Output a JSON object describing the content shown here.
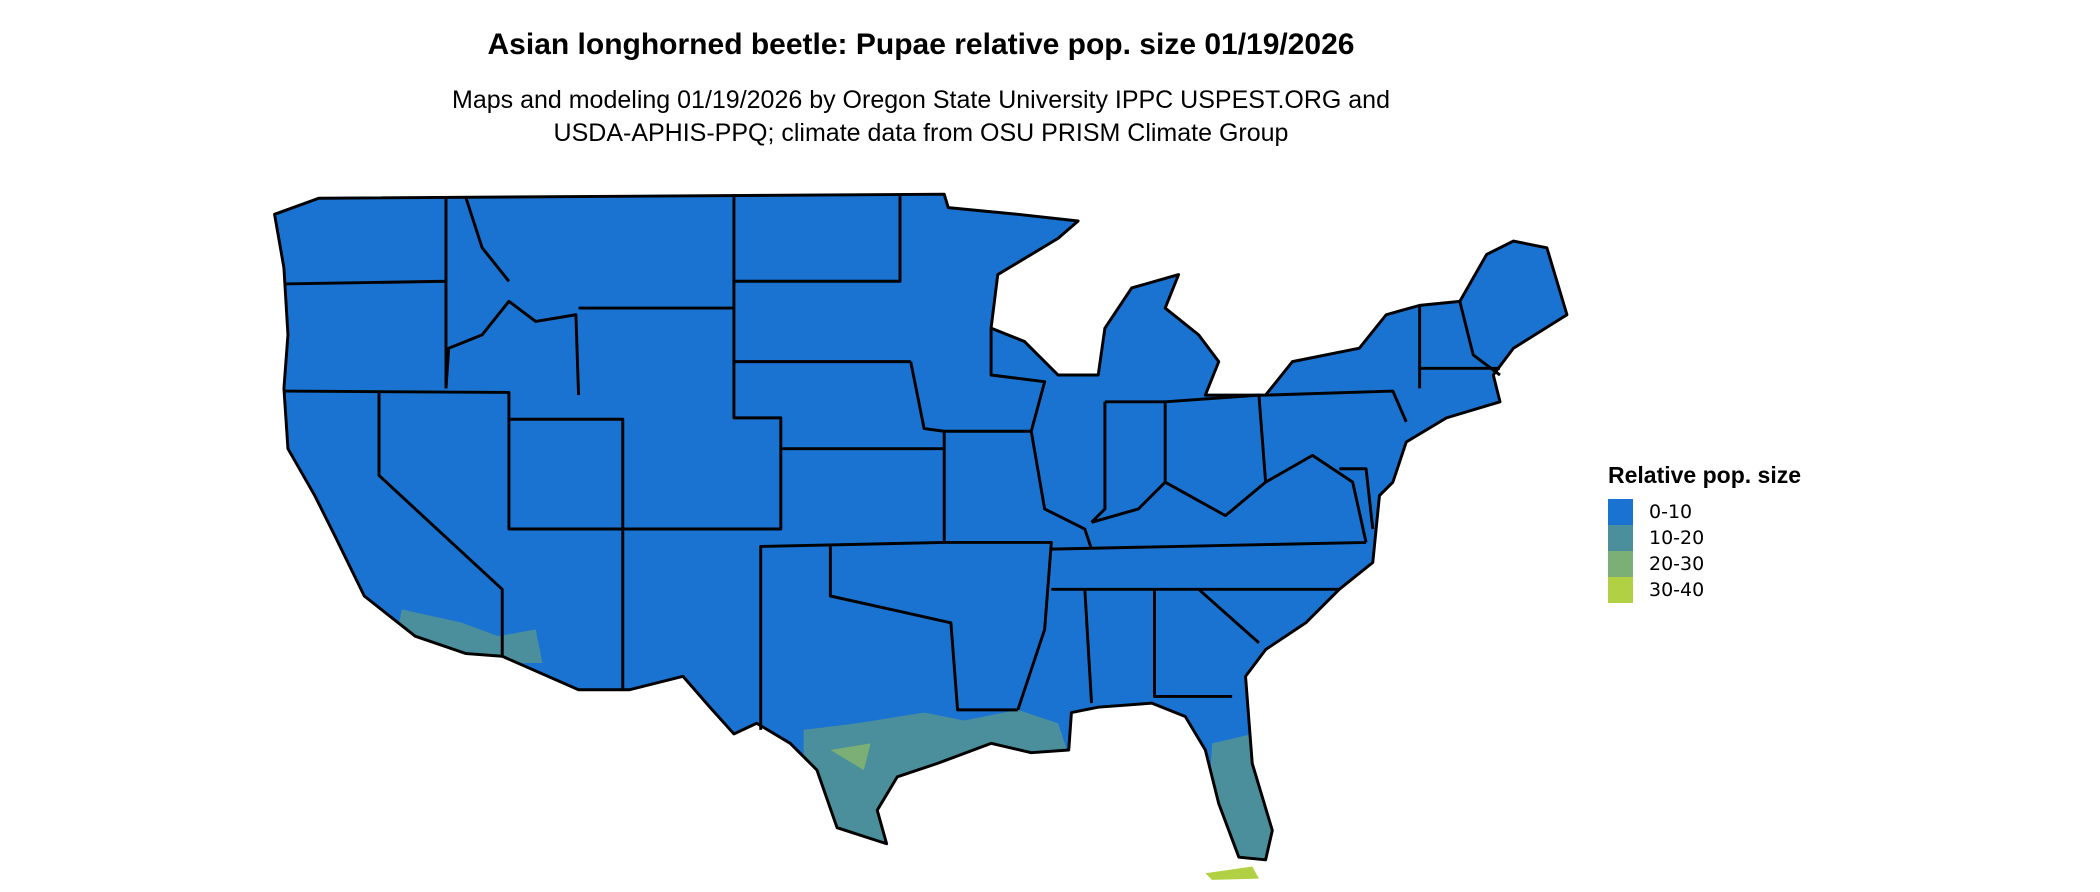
{
  "title": "Asian longhorned beetle: Pupae relative pop. size 01/19/2026",
  "subtitle_line1": "Maps and modeling 01/19/2026 by Oregon State University IPPC USPEST.ORG and",
  "subtitle_line2": "USDA-APHIS-PPQ; climate data from OSU PRISM Climate Group",
  "map": {
    "region": "Contiguous United States",
    "boundaries": "state borders",
    "dominant_class": "0-10",
    "regions_10_20": [
      "Gulf Coast of Texas",
      "southern Louisiana",
      "Florida peninsula",
      "southern California and Arizona"
    ],
    "regions_30_40": [
      "southern tip of Florida"
    ]
  },
  "legend": {
    "title": "Relative pop. size",
    "items": [
      {
        "label": "0-10",
        "color": "#1a73d0"
      },
      {
        "label": "10-20",
        "color": "#4a8f9b"
      },
      {
        "label": "20-30",
        "color": "#7baf75"
      },
      {
        "label": "30-40",
        "color": "#b2d044"
      }
    ]
  }
}
